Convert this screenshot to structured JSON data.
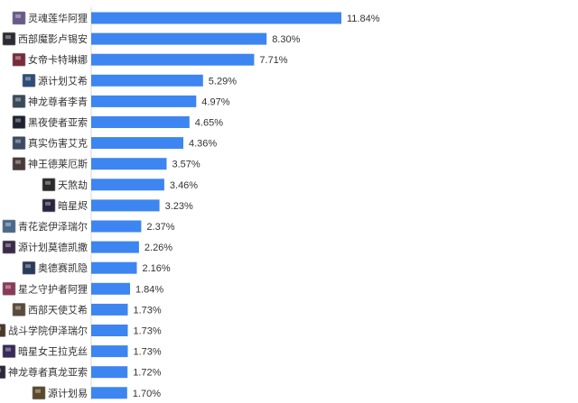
{
  "chart_data": {
    "type": "bar",
    "orientation": "horizontal",
    "title": "",
    "xlabel": "",
    "ylabel": "",
    "xlim": [
      0,
      11.84
    ],
    "grid": false,
    "legend": "none",
    "bar_color": "#3d85f0",
    "categories": [
      "灵魂莲华阿狸",
      "西部魔影卢锡安",
      "女帝卡特琳娜",
      "源计划艾希",
      "神龙尊者李青",
      "黑夜使者亚索",
      "真实伤害艾克",
      "神王德莱厄斯",
      "天煞劫",
      "暗星烬",
      "青花瓷伊泽瑞尔",
      "源计划莫德凯撒",
      "奥德赛凯隐",
      "星之守护者阿狸",
      "西部天使艾希",
      "战斗学院伊泽瑞尔",
      "暗星女王拉克丝",
      "神龙尊者真龙亚索",
      "源计划易"
    ],
    "values": [
      11.84,
      8.3,
      7.71,
      5.29,
      4.97,
      4.65,
      4.36,
      3.57,
      3.46,
      3.23,
      2.37,
      2.26,
      2.16,
      1.84,
      1.73,
      1.73,
      1.73,
      1.72,
      1.7
    ],
    "value_labels": [
      "11.84%",
      "8.30%",
      "7.71%",
      "5.29%",
      "4.97%",
      "4.65%",
      "4.36%",
      "3.57%",
      "3.46%",
      "3.23%",
      "2.37%",
      "2.26%",
      "2.16%",
      "1.84%",
      "1.73%",
      "1.73%",
      "1.73%",
      "1.72%",
      "1.70%"
    ],
    "icon_names": [
      "champion-skin-portrait-icon",
      "champion-skin-portrait-icon",
      "champion-skin-portrait-icon",
      "champion-skin-portrait-icon",
      "champion-skin-portrait-icon",
      "champion-skin-portrait-icon",
      "champion-skin-portrait-icon",
      "champion-skin-portrait-icon",
      "champion-skin-portrait-icon",
      "champion-skin-portrait-icon",
      "champion-skin-portrait-icon",
      "champion-skin-portrait-icon",
      "champion-skin-portrait-icon",
      "champion-skin-portrait-icon",
      "champion-skin-portrait-icon",
      "champion-skin-portrait-icon",
      "champion-skin-portrait-icon",
      "champion-skin-portrait-icon",
      "champion-skin-portrait-icon"
    ],
    "icon_colors": [
      "#6a5a8c",
      "#2b2b33",
      "#7a2a3a",
      "#2e4d7a",
      "#3a4a5a",
      "#1f2230",
      "#3b4a66",
      "#4a3a3a",
      "#2a2a2a",
      "#2a2440",
      "#4a6a8c",
      "#3a2a4a",
      "#2a3a5a",
      "#8c3a5a",
      "#5a4a3a",
      "#4a3a2a",
      "#3a2a5a",
      "#2a2a3a",
      "#5a4a2a"
    ]
  }
}
